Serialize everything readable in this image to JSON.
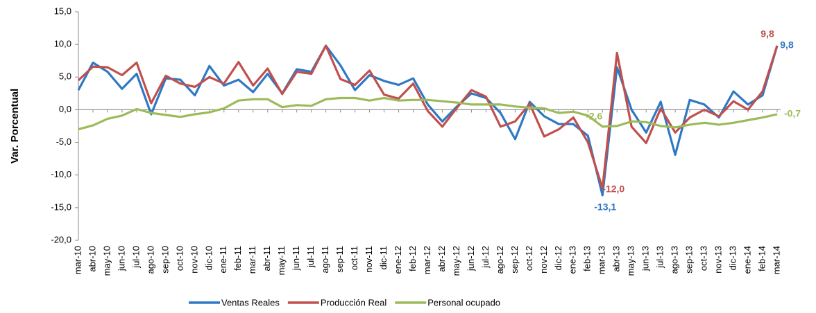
{
  "chart_data": {
    "type": "line",
    "y_label": "Var. Porcentual",
    "categories": [
      "mar-10",
      "abr-10",
      "may-10",
      "jun-10",
      "jul-10",
      "ago-10",
      "sep-10",
      "oct-10",
      "nov-10",
      "dic-10",
      "ene-11",
      "feb-11",
      "mar-11",
      "abr-11",
      "may-11",
      "jun-11",
      "jul-11",
      "ago-11",
      "sep-11",
      "oct-11",
      "nov-11",
      "dic-11",
      "ene-12",
      "feb-12",
      "mar-12",
      "abr-12",
      "may-12",
      "jun-12",
      "jul-12",
      "ago-12",
      "sep-12",
      "oct-12",
      "nov-12",
      "dic-12",
      "ene-13",
      "feb-13",
      "mar-13",
      "abr-13",
      "may-13",
      "jun-13",
      "jul-13",
      "ago-13",
      "sep-13",
      "oct-13",
      "nov-13",
      "dic-13",
      "ene-14",
      "feb-14",
      "mar-14"
    ],
    "series": [
      {
        "name": "Ventas Reales",
        "color": "#2f78c4",
        "values": [
          3.0,
          7.2,
          5.8,
          3.2,
          5.5,
          -0.7,
          4.8,
          4.6,
          2.2,
          6.7,
          3.7,
          4.6,
          2.7,
          5.5,
          2.5,
          6.2,
          5.8,
          9.8,
          6.8,
          3.0,
          5.3,
          4.4,
          3.8,
          4.8,
          0.8,
          -1.8,
          0.5,
          2.5,
          1.8,
          -0.5,
          -4.5,
          1.2,
          -1.0,
          -2.2,
          -2.2,
          -4.0,
          -13.1,
          6.5,
          0.0,
          -3.5,
          1.2,
          -6.9,
          1.5,
          0.8,
          -1.2,
          2.8,
          0.8,
          2.2,
          9.8
        ],
        "value_labels": [
          null,
          null,
          null,
          null,
          null,
          null,
          null,
          null,
          null,
          null,
          null,
          null,
          null,
          null,
          null,
          null,
          null,
          null,
          null,
          null,
          null,
          null,
          null,
          null,
          null,
          null,
          null,
          null,
          null,
          null,
          null,
          null,
          null,
          null,
          null,
          null,
          "-13,1",
          null,
          null,
          null,
          null,
          null,
          null,
          null,
          null,
          null,
          null,
          null,
          "9,8"
        ]
      },
      {
        "name": "Producción Real",
        "color": "#c0504d",
        "values": [
          4.5,
          6.6,
          6.5,
          5.3,
          7.2,
          1.0,
          5.2,
          4.0,
          3.5,
          5.0,
          4.0,
          7.3,
          3.7,
          6.3,
          2.4,
          5.8,
          5.5,
          9.8,
          4.7,
          3.8,
          6.0,
          2.3,
          1.7,
          4.0,
          -0.2,
          -2.6,
          0.3,
          3.0,
          2.0,
          -2.6,
          -1.8,
          0.9,
          -4.1,
          -3.0,
          -1.2,
          -5.0,
          -12.0,
          8.7,
          -2.6,
          -5.1,
          0.2,
          -3.5,
          -1.2,
          0.0,
          -1.0,
          1.3,
          0.0,
          2.8,
          9.8
        ],
        "value_labels": [
          null,
          null,
          null,
          null,
          null,
          null,
          null,
          null,
          null,
          null,
          null,
          null,
          null,
          null,
          null,
          null,
          null,
          null,
          null,
          null,
          null,
          null,
          null,
          null,
          null,
          null,
          null,
          null,
          null,
          null,
          null,
          null,
          null,
          null,
          null,
          null,
          "-12,0",
          null,
          null,
          null,
          null,
          null,
          null,
          null,
          null,
          null,
          null,
          null,
          "9,8"
        ]
      },
      {
        "name": "Personal ocupado",
        "color": "#9bbb59",
        "values": [
          -3.0,
          -2.4,
          -1.4,
          -0.9,
          0.1,
          -0.5,
          -0.8,
          -1.1,
          -0.7,
          -0.4,
          0.2,
          1.4,
          1.6,
          1.6,
          0.4,
          0.7,
          0.6,
          1.6,
          1.8,
          1.8,
          1.4,
          1.8,
          1.4,
          1.5,
          1.5,
          1.3,
          1.1,
          0.8,
          0.8,
          0.8,
          0.5,
          0.3,
          0.2,
          -0.5,
          -0.3,
          -0.9,
          -2.6,
          -2.5,
          -1.8,
          -1.9,
          -2.5,
          -2.7,
          -2.3,
          -2.0,
          -2.3,
          -2.0,
          -1.6,
          -1.2,
          -0.7
        ],
        "value_labels": [
          null,
          null,
          null,
          null,
          null,
          null,
          null,
          null,
          null,
          null,
          null,
          null,
          null,
          null,
          null,
          null,
          null,
          null,
          null,
          null,
          null,
          null,
          null,
          null,
          null,
          null,
          null,
          null,
          null,
          null,
          null,
          null,
          null,
          null,
          null,
          null,
          "-2,6",
          null,
          null,
          null,
          null,
          null,
          null,
          null,
          null,
          null,
          null,
          null,
          "-0,7"
        ]
      }
    ],
    "ylim": [
      -20,
      15
    ],
    "yticks": [
      {
        "value": -20,
        "label": "-20,0"
      },
      {
        "value": -15,
        "label": "-15,0"
      },
      {
        "value": -10,
        "label": "-10,0"
      },
      {
        "value": -5,
        "label": "-5,0"
      },
      {
        "value": 0,
        "label": "0,0"
      },
      {
        "value": 5,
        "label": "5,0"
      },
      {
        "value": 10,
        "label": "10,0"
      },
      {
        "value": 15,
        "label": "15,0"
      }
    ],
    "grid": false,
    "legend": "bottom"
  }
}
